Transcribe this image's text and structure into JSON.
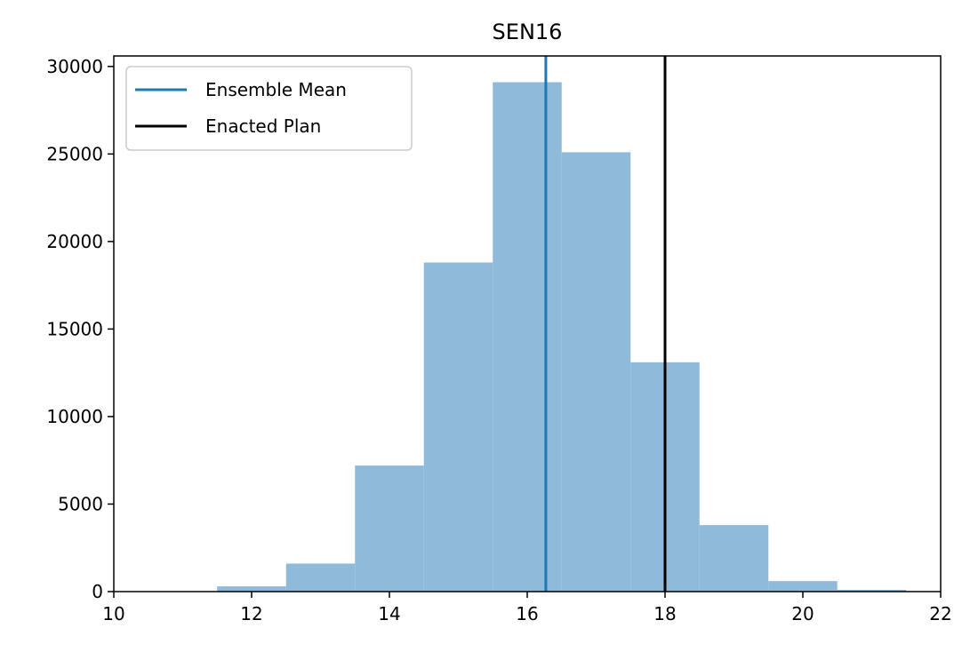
{
  "chart_data": {
    "type": "bar",
    "title": "SEN16",
    "xlabel": "",
    "ylabel": "",
    "xlim": [
      10,
      22
    ],
    "ylim": [
      0,
      30600
    ],
    "xticks": [
      10,
      12,
      14,
      16,
      18,
      20,
      22
    ],
    "yticks": [
      0,
      5000,
      10000,
      15000,
      20000,
      25000,
      30000
    ],
    "bin_edges": [
      11.5,
      12.5,
      13.5,
      14.5,
      15.5,
      16.5,
      17.5,
      18.5,
      19.5,
      20.5,
      21.5
    ],
    "counts": [
      300,
      1600,
      7200,
      18800,
      29100,
      25100,
      13100,
      3800,
      600,
      100
    ],
    "bar_color": "#8fbad9",
    "vlines": [
      {
        "name": "Ensemble Mean",
        "x": 16.27,
        "color": "#1f77b4"
      },
      {
        "name": "Enacted Plan",
        "x": 18.0,
        "color": "#000000"
      }
    ],
    "legend": {
      "placement": "upper-left",
      "entries": [
        {
          "label": "Ensemble Mean",
          "color": "#1f77b4"
        },
        {
          "label": "Enacted Plan",
          "color": "#000000"
        }
      ]
    },
    "grid": false
  }
}
